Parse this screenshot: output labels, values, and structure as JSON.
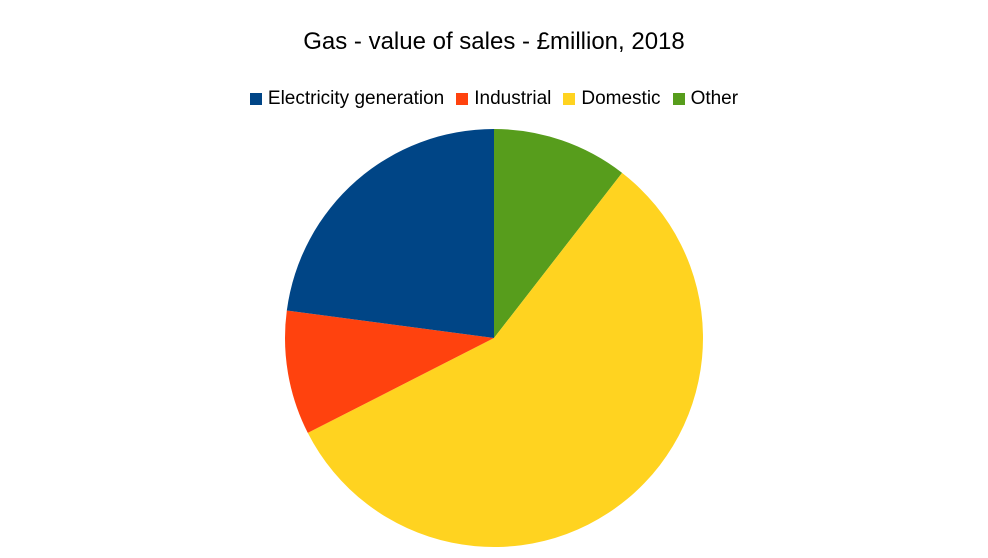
{
  "chart_data": {
    "type": "pie",
    "title": "Gas - value of sales - £million, 2018",
    "legend_position": "top",
    "slices": [
      {
        "label": "Electricity generation",
        "value": 22.9,
        "color": "#004586"
      },
      {
        "label": "Industrial",
        "value": 9.6,
        "color": "#ff420e"
      },
      {
        "label": "Domestic",
        "value": 57.0,
        "color": "#ffd320"
      },
      {
        "label": "Other",
        "value": 10.5,
        "color": "#579d1c"
      }
    ]
  }
}
